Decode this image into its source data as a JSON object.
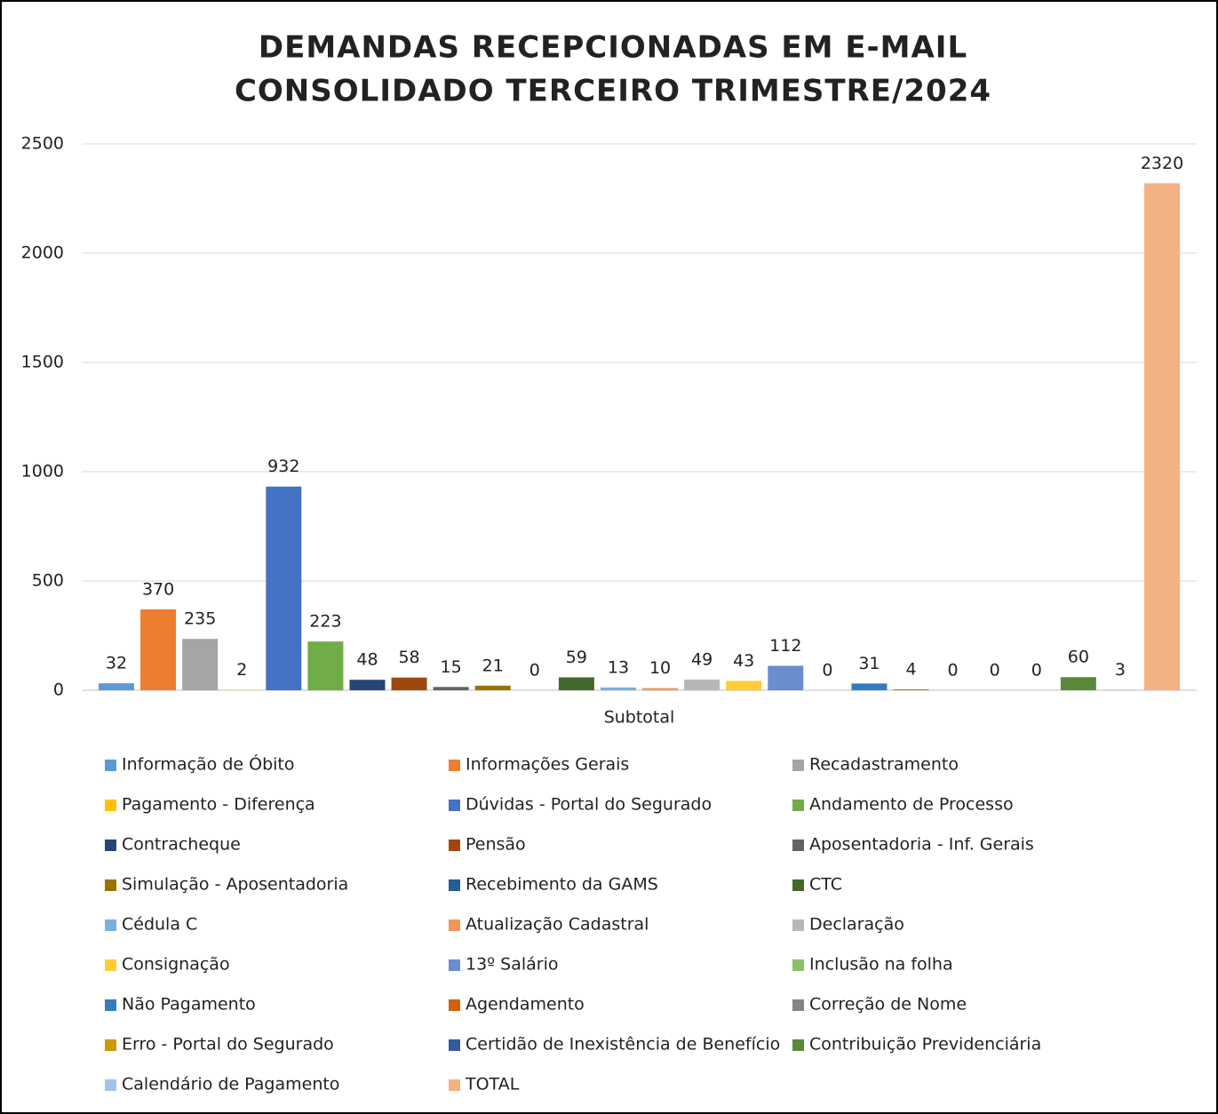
{
  "chart_data": {
    "type": "bar",
    "title": [
      "DEMANDAS RECEPCIONADAS EM E-MAIL",
      "CONSOLIDADO TERCEIRO TRIMESTRE/2024"
    ],
    "categories": [
      "Subtotal"
    ],
    "series": [
      {
        "name": "Informação de Óbito",
        "color": "#5b9bd5",
        "values": [
          32
        ]
      },
      {
        "name": "Informações Gerais",
        "color": "#ed7d31",
        "values": [
          370
        ]
      },
      {
        "name": "Recadastramento",
        "color": "#a5a5a5",
        "values": [
          235
        ]
      },
      {
        "name": "Pagamento - Diferença",
        "color": "#ffc000",
        "values": [
          2
        ]
      },
      {
        "name": "Dúvidas - Portal do Segurado",
        "color": "#4472c4",
        "values": [
          932
        ]
      },
      {
        "name": "Andamento de Processo",
        "color": "#70ad47",
        "values": [
          223
        ]
      },
      {
        "name": "Contracheque",
        "color": "#264478",
        "values": [
          48
        ]
      },
      {
        "name": "Pensão",
        "color": "#9e480e",
        "values": [
          58
        ]
      },
      {
        "name": "Aposentadoria - Inf. Gerais",
        "color": "#636363",
        "values": [
          15
        ]
      },
      {
        "name": "Simulação - Aposentadoria",
        "color": "#997300",
        "values": [
          21
        ]
      },
      {
        "name": "Recebimento da GAMS",
        "color": "#255e91",
        "values": [
          0
        ]
      },
      {
        "name": "CTC",
        "color": "#43682b",
        "values": [
          59
        ]
      },
      {
        "name": "Cédula C",
        "color": "#7cafdd",
        "values": [
          13
        ]
      },
      {
        "name": "Atualização Cadastral",
        "color": "#f1975a",
        "values": [
          10
        ]
      },
      {
        "name": "Declaração",
        "color": "#b7b7b7",
        "values": [
          49
        ]
      },
      {
        "name": "Consignação",
        "color": "#ffcd33",
        "values": [
          43
        ]
      },
      {
        "name": "13º Salário",
        "color": "#698ed0",
        "values": [
          112
        ]
      },
      {
        "name": "Inclusão na folha",
        "color": "#8cc168",
        "values": [
          0
        ]
      },
      {
        "name": "Não Pagamento",
        "color": "#327dc2",
        "values": [
          31
        ]
      },
      {
        "name": "Agendamento",
        "color": "#d26012",
        "values": [
          4
        ]
      },
      {
        "name": "Correção de Nome",
        "color": "#848484",
        "values": [
          0
        ]
      },
      {
        "name": "Erro - Portal do Segurado",
        "color": "#cc9a00",
        "values": [
          0
        ]
      },
      {
        "name": "Certidão de Inexistência de Benefício",
        "color": "#335aa1",
        "values": [
          0
        ]
      },
      {
        "name": "Contribuição Previdenciária",
        "color": "#5a8a39",
        "values": [
          60
        ]
      },
      {
        "name": "Calendário de Pagamento",
        "color": "#a3c4e6",
        "values": [
          3
        ]
      },
      {
        "name": "TOTAL",
        "color": "#f4b183",
        "values": [
          2320
        ]
      }
    ],
    "ylim": [
      0,
      2500
    ],
    "yticks": [
      0,
      500,
      1000,
      1500,
      2000,
      2500
    ],
    "grid": true,
    "legend": "bottom"
  }
}
